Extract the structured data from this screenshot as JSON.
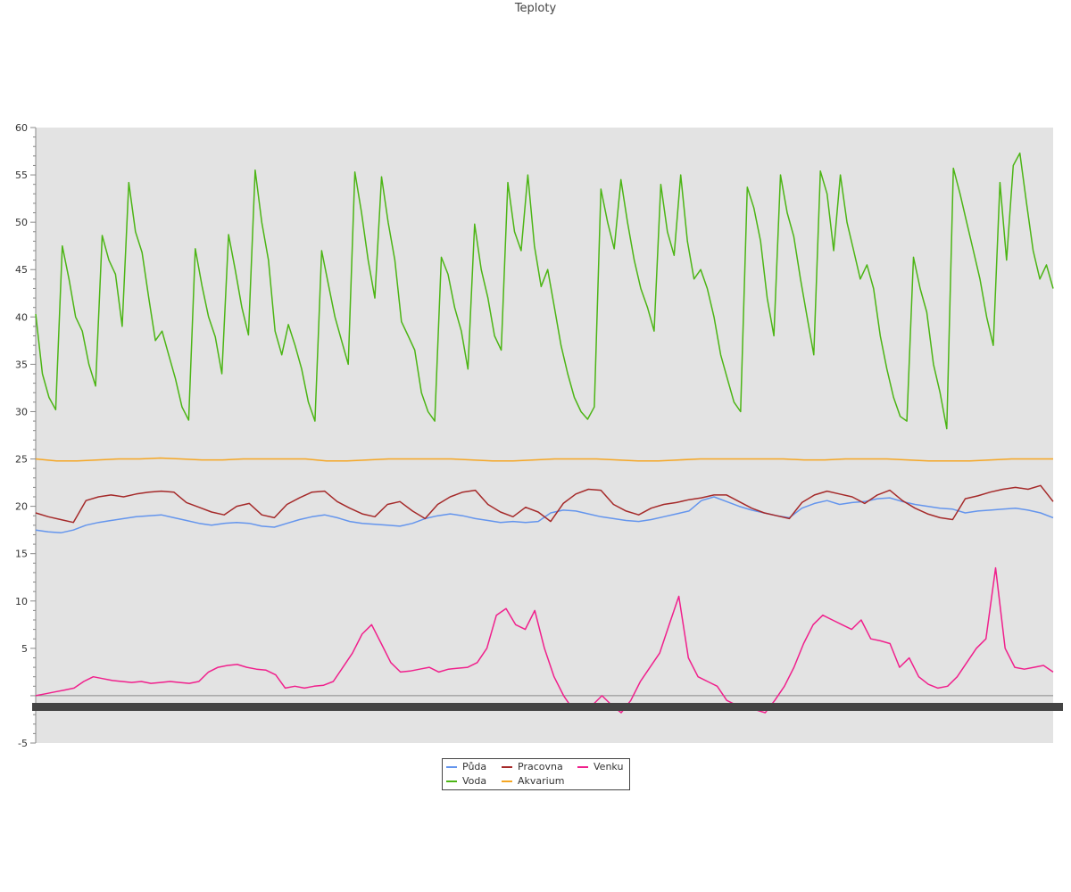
{
  "chart_data": {
    "type": "line",
    "title": "Teploty",
    "xlabel": "",
    "ylabel": "",
    "ylim": [
      -5,
      60
    ],
    "yticks": [
      -5,
      5,
      10,
      15,
      20,
      25,
      30,
      35,
      40,
      45,
      50,
      55,
      60
    ],
    "grid": false,
    "legend_position": "bottom-center",
    "series": [
      {
        "name": "Půda",
        "color": "#6495ed",
        "values": [
          17.5,
          17.3,
          17.2,
          17.5,
          18.0,
          18.3,
          18.5,
          18.7,
          18.9,
          19.0,
          19.1,
          18.8,
          18.5,
          18.2,
          18.0,
          18.2,
          18.3,
          18.2,
          17.9,
          17.8,
          18.2,
          18.6,
          18.9,
          19.1,
          18.8,
          18.4,
          18.2,
          18.1,
          18.0,
          17.9,
          18.2,
          18.7,
          19.0,
          19.2,
          19.0,
          18.7,
          18.5,
          18.3,
          18.4,
          18.3,
          18.4,
          19.3,
          19.6,
          19.5,
          19.2,
          18.9,
          18.7,
          18.5,
          18.4,
          18.6,
          18.9,
          19.2,
          19.5,
          20.6,
          21.0,
          20.5,
          20.0,
          19.6,
          19.3,
          19.0,
          18.8,
          19.8,
          20.3,
          20.6,
          20.2,
          20.4,
          20.5,
          20.8,
          20.9,
          20.5,
          20.2,
          20.0,
          19.8,
          19.7,
          19.3,
          19.5,
          19.6,
          19.7,
          19.8,
          19.6,
          19.3,
          18.8
        ]
      },
      {
        "name": "Pracovna",
        "color": "#a52a2a",
        "values": [
          19.3,
          18.9,
          18.6,
          18.3,
          20.6,
          21.0,
          21.2,
          21.0,
          21.3,
          21.5,
          21.6,
          21.5,
          20.4,
          19.9,
          19.4,
          19.1,
          20.0,
          20.3,
          19.1,
          18.8,
          20.2,
          20.9,
          21.5,
          21.6,
          20.5,
          19.8,
          19.2,
          18.9,
          20.2,
          20.5,
          19.5,
          18.7,
          20.2,
          21.0,
          21.5,
          21.7,
          20.2,
          19.4,
          18.9,
          19.9,
          19.4,
          18.4,
          20.3,
          21.3,
          21.8,
          21.7,
          20.2,
          19.5,
          19.1,
          19.8,
          20.2,
          20.4,
          20.7,
          20.9,
          21.2,
          21.2,
          20.5,
          19.8,
          19.3,
          19.0,
          18.7,
          20.4,
          21.2,
          21.6,
          21.3,
          21.0,
          20.3,
          21.2,
          21.7,
          20.6,
          19.8,
          19.2,
          18.8,
          18.6,
          20.8,
          21.1,
          21.5,
          21.8,
          22.0,
          21.8,
          22.2,
          20.5
        ]
      },
      {
        "name": "Voda",
        "color": "#4cb515",
        "values": [
          40.3,
          34.0,
          31.5,
          30.2,
          47.5,
          44.0,
          40.0,
          38.5,
          35.0,
          32.7,
          48.6,
          46.0,
          44.5,
          39.0,
          54.2,
          49.0,
          46.8,
          42.0,
          37.5,
          38.5,
          36.0,
          33.5,
          30.5,
          29.1,
          47.2,
          43.3,
          40.0,
          37.9,
          34.0,
          48.7,
          45.0,
          41.0,
          38.1,
          55.5,
          50.0,
          46.0,
          38.5,
          36.0,
          39.2,
          37.0,
          34.5,
          31.0,
          29.0,
          47.0,
          43.5,
          40.0,
          37.5,
          35.0,
          55.3,
          51.0,
          46.0,
          42.0,
          54.8,
          50.0,
          46.0,
          39.5,
          38.0,
          36.5,
          32.0,
          30.0,
          29.0,
          46.3,
          44.5,
          41.0,
          38.5,
          34.5,
          49.8,
          45.0,
          42.0,
          38.0,
          36.5,
          54.2,
          49.0,
          47.0,
          55.0,
          47.5,
          43.2,
          45.0,
          41.0,
          37.0,
          34.0,
          31.5,
          30.0,
          29.2,
          30.5,
          53.5,
          50.0,
          47.2,
          54.5,
          50.0,
          46.0,
          43.0,
          41.0,
          38.5,
          54.0,
          49.0,
          46.5,
          55.0,
          48.0,
          44.0,
          45.0,
          43.0,
          40.0,
          36.0,
          33.5,
          31.0,
          30.0,
          53.7,
          51.5,
          48.0,
          42.0,
          38.0,
          55.0,
          51.0,
          48.5,
          44.0,
          40.0,
          36.0,
          55.4,
          53.0,
          47.0,
          55.0,
          50.0,
          47.0,
          44.0,
          45.5,
          43.0,
          38.0,
          34.5,
          31.5,
          29.5,
          29.0,
          46.3,
          43.0,
          40.5,
          35.0,
          32.0,
          28.2,
          55.7,
          53.0,
          50.0,
          47.0,
          44.0,
          40.0,
          37.0,
          54.2,
          46.0,
          56.0,
          57.3,
          52.0,
          47.0,
          44.0,
          45.5,
          43.0
        ]
      },
      {
        "name": "Akvarium",
        "color": "#f5a623",
        "values": [
          25.0,
          24.8,
          24.8,
          24.9,
          25.0,
          25.0,
          25.1,
          25.0,
          24.9,
          24.9,
          25.0,
          25.0,
          25.0,
          25.0,
          24.8,
          24.8,
          24.9,
          25.0,
          25.0,
          25.0,
          25.0,
          24.9,
          24.8,
          24.8,
          24.9,
          25.0,
          25.0,
          25.0,
          24.9,
          24.8,
          24.8,
          24.9,
          25.0,
          25.0,
          25.0,
          25.0,
          25.0,
          24.9,
          24.9,
          25.0,
          25.0,
          25.0,
          24.9,
          24.8,
          24.8,
          24.8,
          24.9,
          25.0,
          25.0,
          25.0
        ]
      },
      {
        "name": "Venku",
        "color": "#f0208c",
        "values": [
          0.0,
          0.2,
          0.4,
          0.6,
          0.8,
          1.5,
          2.0,
          1.8,
          1.6,
          1.5,
          1.4,
          1.5,
          1.3,
          1.4,
          1.5,
          1.4,
          1.3,
          1.5,
          2.5,
          3.0,
          3.2,
          3.3,
          3.0,
          2.8,
          2.7,
          2.2,
          0.8,
          1.0,
          0.8,
          1.0,
          1.1,
          1.5,
          3.0,
          4.5,
          6.5,
          7.5,
          5.5,
          3.5,
          2.5,
          2.6,
          2.8,
          3.0,
          2.5,
          2.8,
          2.9,
          3.0,
          3.5,
          5.0,
          8.5,
          9.2,
          7.5,
          7.0,
          9.0,
          5.0,
          2.0,
          0.0,
          -1.5,
          -1.2,
          -1.0,
          0.0,
          -1.0,
          -1.8,
          -0.5,
          1.5,
          3.0,
          4.5,
          7.5,
          10.5,
          4.0,
          2.0,
          1.5,
          1.0,
          -0.5,
          -1.0,
          -1.2,
          -1.5,
          -1.8,
          -0.5,
          1.0,
          3.0,
          5.5,
          7.5,
          8.5,
          8.0,
          7.5,
          7.0,
          8.0,
          6.0,
          5.8,
          5.5,
          3.0,
          4.0,
          2.0,
          1.2,
          0.8,
          1.0,
          2.0,
          3.5,
          5.0,
          6.0,
          13.5,
          5.0,
          3.0,
          2.8,
          3.0,
          3.2,
          2.5
        ]
      }
    ]
  }
}
